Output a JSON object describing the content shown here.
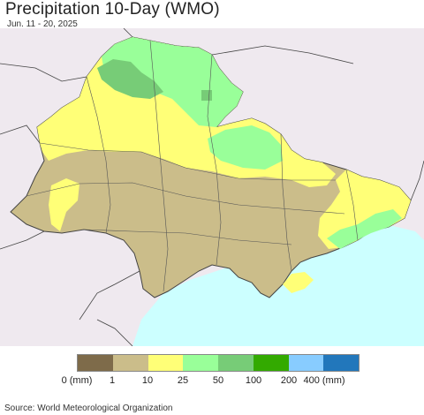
{
  "title": "Precipitation 10-Day (WMO)",
  "subtitle": "Jun. 11 - 20, 2025",
  "source": "Source: World Meteorological Organization",
  "legend": {
    "colors": [
      "#7e6b4a",
      "#cbbd8a",
      "#ffff77",
      "#99ff99",
      "#77cc77",
      "#33aa00",
      "#88ccff",
      "#2277bb"
    ],
    "labels": [
      "0 (mm)",
      "1",
      "10",
      "25",
      "50",
      "100",
      "200",
      "400 (mm)"
    ]
  },
  "map_colors": {
    "outside": "#efe9ef",
    "sea": "#ccffff",
    "dry": "#cbbd8a",
    "light": "#ffff77",
    "moderate": "#99ff99",
    "heavy": "#77cc77",
    "border": "#444444"
  }
}
